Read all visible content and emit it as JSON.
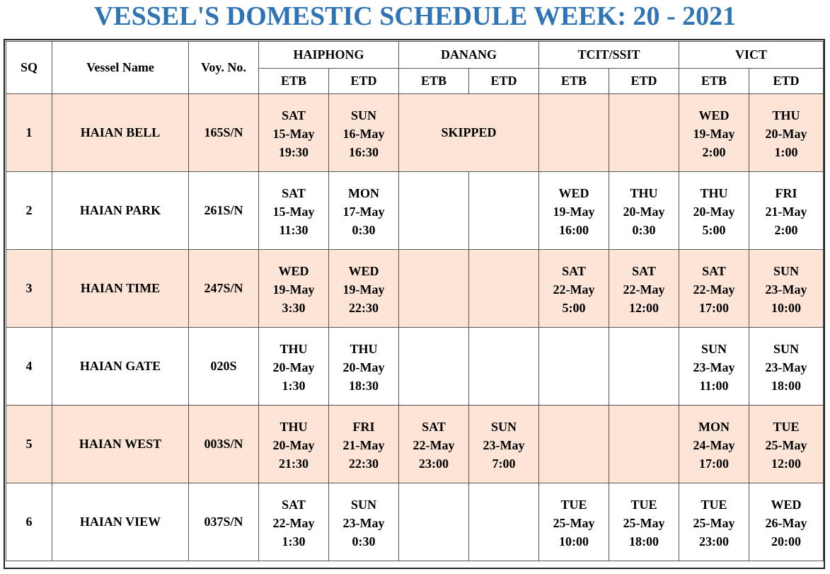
{
  "title": "VESSEL'S DOMESTIC SCHEDULE WEEK: 20 - 2021",
  "headers": {
    "sq": "SQ",
    "vessel": "Vessel Name",
    "voy": "Voy. No.",
    "ports": [
      "HAIPHONG",
      "DANANG",
      "TCIT/SSIT",
      "VICT"
    ],
    "etb": "ETB",
    "etd": "ETD"
  },
  "rows": [
    {
      "sq": "1",
      "vessel": "HAIAN BELL",
      "voy": "165S/N",
      "hp_etb": {
        "day": "SAT",
        "date": "15-May",
        "time": "19:30"
      },
      "hp_etd": {
        "day": "SUN",
        "date": "16-May",
        "time": "16:30"
      },
      "danang_note": "SKIPPED",
      "vict_etb": {
        "day": "WED",
        "date": "19-May",
        "time": "2:00"
      },
      "vict_etd": {
        "day": "THU",
        "date": "20-May",
        "time": "1:00"
      }
    },
    {
      "sq": "2",
      "vessel": "HAIAN PARK",
      "voy": "261S/N",
      "hp_etb": {
        "day": "SAT",
        "date": "15-May",
        "time": "11:30"
      },
      "hp_etd": {
        "day": "MON",
        "date": "17-May",
        "time": "0:30"
      },
      "tc_etb": {
        "day": "WED",
        "date": "19-May",
        "time": "16:00"
      },
      "tc_etd": {
        "day": "THU",
        "date": "20-May",
        "time": "0:30"
      },
      "vict_etb": {
        "day": "THU",
        "date": "20-May",
        "time": "5:00"
      },
      "vict_etd": {
        "day": "FRI",
        "date": "21-May",
        "time": "2:00"
      }
    },
    {
      "sq": "3",
      "vessel": "HAIAN TIME",
      "voy": "247S/N",
      "hp_etb": {
        "day": "WED",
        "date": "19-May",
        "time": "3:30"
      },
      "hp_etd": {
        "day": "WED",
        "date": "19-May",
        "time": "22:30"
      },
      "tc_etb": {
        "day": "SAT",
        "date": "22-May",
        "time": "5:00"
      },
      "tc_etd": {
        "day": "SAT",
        "date": "22-May",
        "time": "12:00"
      },
      "vict_etb": {
        "day": "SAT",
        "date": "22-May",
        "time": "17:00"
      },
      "vict_etd": {
        "day": "SUN",
        "date": "23-May",
        "time": "10:00"
      }
    },
    {
      "sq": "4",
      "vessel": "HAIAN GATE",
      "voy": "020S",
      "hp_etb": {
        "day": "THU",
        "date": "20-May",
        "time": "1:30"
      },
      "hp_etd": {
        "day": "THU",
        "date": "20-May",
        "time": "18:30"
      },
      "vict_etb": {
        "day": "SUN",
        "date": "23-May",
        "time": "11:00"
      },
      "vict_etd": {
        "day": "SUN",
        "date": "23-May",
        "time": "18:00"
      }
    },
    {
      "sq": "5",
      "vessel": "HAIAN WEST",
      "voy": "003S/N",
      "hp_etb": {
        "day": "THU",
        "date": "20-May",
        "time": "21:30"
      },
      "hp_etd": {
        "day": "FRI",
        "date": "21-May",
        "time": "22:30"
      },
      "dn_etb": {
        "day": "SAT",
        "date": "22-May",
        "time": "23:00"
      },
      "dn_etd": {
        "day": "SUN",
        "date": "23-May",
        "time": "7:00"
      },
      "vict_etb": {
        "day": "MON",
        "date": "24-May",
        "time": "17:00"
      },
      "vict_etd": {
        "day": "TUE",
        "date": "25-May",
        "time": "12:00"
      }
    },
    {
      "sq": "6",
      "vessel": "HAIAN VIEW",
      "voy": "037S/N",
      "hp_etb": {
        "day": "SAT",
        "date": "22-May",
        "time": "1:30"
      },
      "hp_etd": {
        "day": "SUN",
        "date": "23-May",
        "time": "0:30"
      },
      "tc_etb": {
        "day": "TUE",
        "date": "25-May",
        "time": "10:00"
      },
      "tc_etd": {
        "day": "TUE",
        "date": "25-May",
        "time": "18:00"
      },
      "vict_etb": {
        "day": "TUE",
        "date": "25-May",
        "time": "23:00"
      },
      "vict_etd": {
        "day": "WED",
        "date": "26-May",
        "time": "20:00"
      }
    }
  ]
}
